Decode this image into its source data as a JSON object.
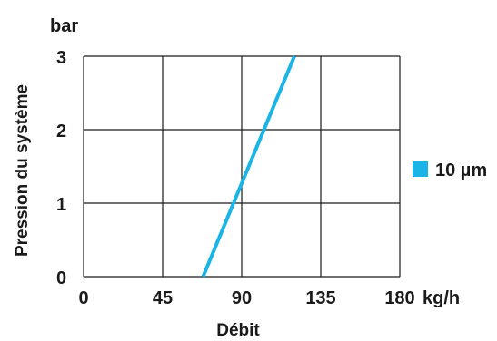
{
  "chart_data": {
    "type": "line",
    "xlabel": "Débit",
    "ylabel": "Pression du système",
    "x_unit": "kg/h",
    "y_unit": "bar",
    "xlim": [
      0,
      180
    ],
    "ylim": [
      0,
      3
    ],
    "x_ticks": [
      "0",
      "45",
      "90",
      "135",
      "180"
    ],
    "y_ticks": [
      "0",
      "1",
      "2",
      "3"
    ],
    "grid": true,
    "legend_position": "right",
    "series": [
      {
        "name": "10 µm",
        "color": "#1ab5e6",
        "x": [
          68,
          120
        ],
        "y": [
          0,
          3
        ]
      }
    ]
  }
}
